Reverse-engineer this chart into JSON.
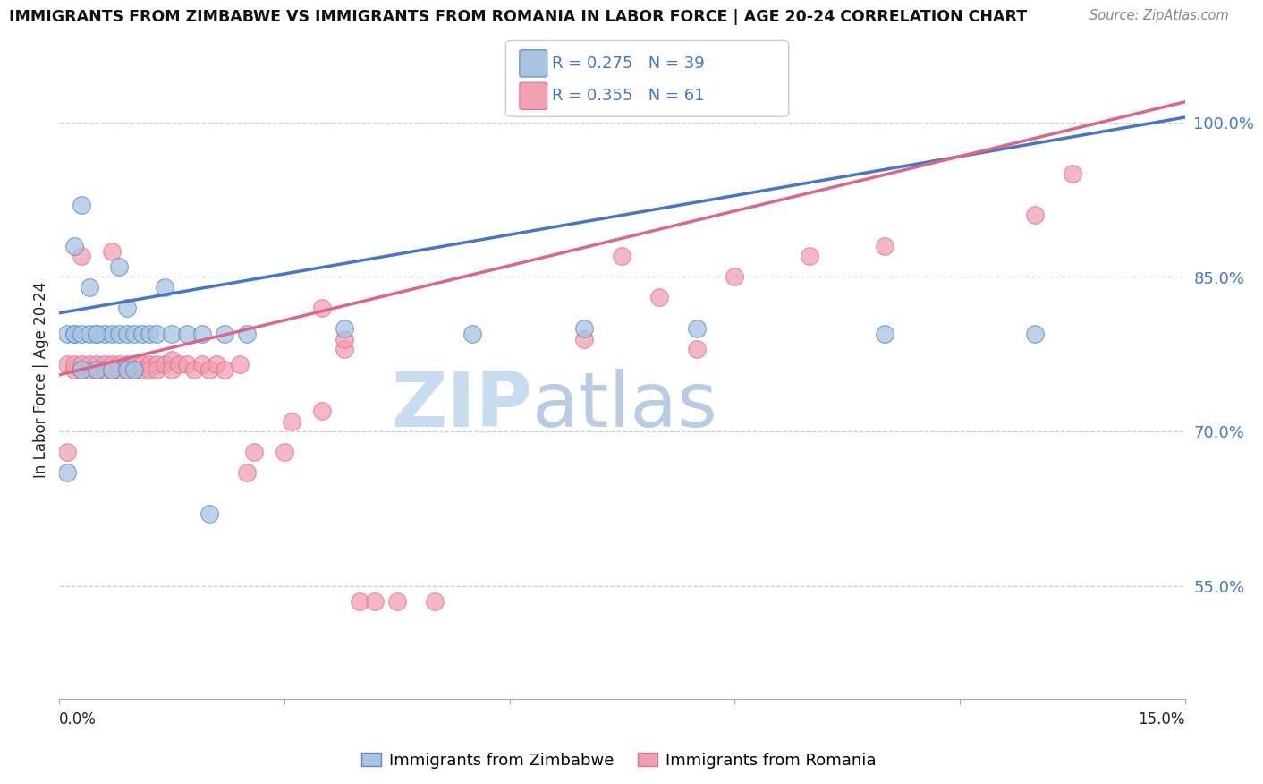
{
  "title": "IMMIGRANTS FROM ZIMBABWE VS IMMIGRANTS FROM ROMANIA IN LABOR FORCE | AGE 20-24 CORRELATION CHART",
  "source": "Source: ZipAtlas.com",
  "ylabel": "In Labor Force | Age 20-24",
  "yticks": [
    0.55,
    0.7,
    0.85,
    1.0
  ],
  "ytick_labels": [
    "55.0%",
    "70.0%",
    "85.0%",
    "100.0%"
  ],
  "xlim": [
    0.0,
    0.15
  ],
  "ylim": [
    0.44,
    1.06
  ],
  "blue_R": "0.275",
  "blue_N": "39",
  "pink_R": "0.355",
  "pink_N": "61",
  "blue_fill": "#A8C4E0",
  "pink_fill": "#F0A0B0",
  "blue_edge": "#5588CC",
  "pink_edge": "#DD7090",
  "blue_line": "#4477CC",
  "pink_line": "#DD6688",
  "label_color": "#4477CC",
  "watermark_zip": "ZIP",
  "watermark_atlas": "atlas",
  "watermark_color": "#C8DCF0",
  "blue_x": [
    0.001,
    0.002,
    0.002,
    0.003,
    0.003,
    0.004,
    0.005,
    0.005,
    0.006,
    0.007,
    0.007,
    0.008,
    0.009,
    0.009,
    0.01,
    0.01,
    0.011,
    0.012,
    0.013,
    0.014,
    0.015,
    0.017,
    0.019,
    0.02,
    0.022,
    0.025,
    0.038,
    0.055,
    0.07,
    0.085,
    0.11,
    0.13,
    0.001,
    0.002,
    0.003,
    0.004,
    0.008,
    0.009,
    0.005
  ],
  "blue_y": [
    0.795,
    0.795,
    0.795,
    0.76,
    0.795,
    0.795,
    0.795,
    0.76,
    0.795,
    0.795,
    0.76,
    0.795,
    0.795,
    0.76,
    0.795,
    0.76,
    0.795,
    0.795,
    0.795,
    0.84,
    0.795,
    0.795,
    0.795,
    0.62,
    0.795,
    0.795,
    0.8,
    0.795,
    0.8,
    0.8,
    0.795,
    0.795,
    0.66,
    0.88,
    0.92,
    0.84,
    0.86,
    0.82,
    0.795
  ],
  "pink_x": [
    0.001,
    0.002,
    0.002,
    0.003,
    0.003,
    0.004,
    0.004,
    0.005,
    0.005,
    0.005,
    0.006,
    0.006,
    0.007,
    0.007,
    0.008,
    0.008,
    0.009,
    0.009,
    0.01,
    0.01,
    0.011,
    0.011,
    0.012,
    0.012,
    0.013,
    0.013,
    0.014,
    0.015,
    0.015,
    0.016,
    0.017,
    0.018,
    0.019,
    0.02,
    0.021,
    0.022,
    0.024,
    0.026,
    0.03,
    0.031,
    0.035,
    0.038,
    0.04,
    0.042,
    0.035,
    0.038,
    0.045,
    0.05,
    0.07,
    0.075,
    0.08,
    0.085,
    0.09,
    0.1,
    0.11,
    0.13,
    0.135,
    0.001,
    0.003,
    0.007,
    0.025
  ],
  "pink_y": [
    0.765,
    0.76,
    0.765,
    0.76,
    0.765,
    0.76,
    0.765,
    0.76,
    0.765,
    0.76,
    0.765,
    0.76,
    0.765,
    0.76,
    0.765,
    0.76,
    0.765,
    0.76,
    0.765,
    0.76,
    0.765,
    0.76,
    0.765,
    0.76,
    0.765,
    0.76,
    0.765,
    0.77,
    0.76,
    0.765,
    0.765,
    0.76,
    0.765,
    0.76,
    0.765,
    0.76,
    0.765,
    0.68,
    0.68,
    0.71,
    0.72,
    0.78,
    0.535,
    0.535,
    0.82,
    0.79,
    0.535,
    0.535,
    0.79,
    0.87,
    0.83,
    0.78,
    0.85,
    0.87,
    0.88,
    0.91,
    0.95,
    0.68,
    0.87,
    0.875,
    0.66
  ],
  "blue_line_x0": 0.0,
  "blue_line_y0": 0.815,
  "blue_line_x1": 0.15,
  "blue_line_y1": 1.005,
  "pink_line_x0": 0.0,
  "pink_line_y0": 0.755,
  "pink_line_x1": 0.15,
  "pink_line_y1": 1.02,
  "xtick_positions": [
    0.0,
    0.03,
    0.06,
    0.09,
    0.12,
    0.15
  ],
  "bottom_legend_labels": [
    "Immigrants from Zimbabwe",
    "Immigrants from Romania"
  ]
}
